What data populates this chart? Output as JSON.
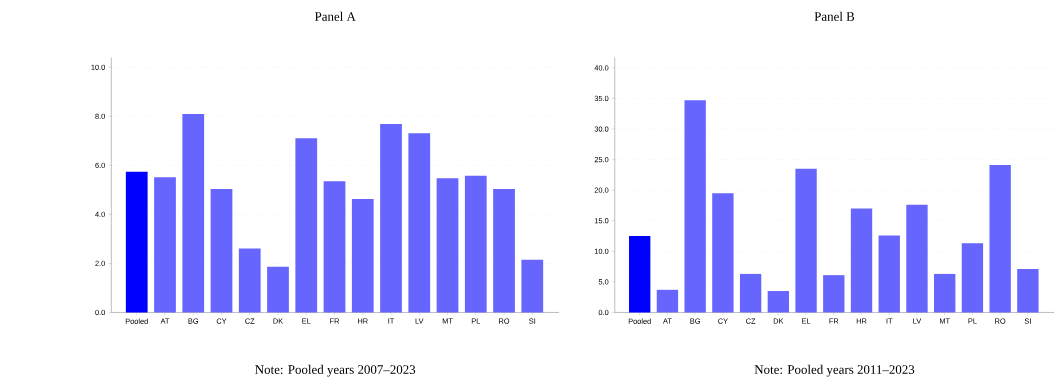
{
  "chart_data": [
    {
      "type": "bar",
      "title": "Panel A",
      "annotations": [
        "Note: Pooled years 2007–2023"
      ],
      "categories": [
        "Pooled",
        "AT",
        "BG",
        "CY",
        "CZ",
        "DK",
        "EL",
        "FR",
        "HR",
        "IT",
        "LV",
        "MT",
        "PL",
        "RO",
        "SI"
      ],
      "values": [
        5.74,
        5.51,
        8.09,
        5.04,
        2.61,
        1.86,
        7.11,
        5.35,
        4.63,
        7.69,
        7.31,
        5.47,
        5.58,
        5.04,
        2.15
      ],
      "colors": [
        "#0000ff",
        "#6666ff",
        "#6666ff",
        "#6666ff",
        "#6666ff",
        "#6666ff",
        "#6666ff",
        "#6666ff",
        "#6666ff",
        "#6666ff",
        "#6666ff",
        "#6666ff",
        "#6666ff",
        "#6666ff",
        "#6666ff"
      ],
      "ylim": [
        0,
        10.4
      ],
      "yticks": [
        {
          "value": 0,
          "label": "0.0"
        },
        {
          "value": 2,
          "label": "2.0"
        },
        {
          "value": 4,
          "label": "4.0"
        },
        {
          "value": 6,
          "label": "6.0"
        },
        {
          "value": 8,
          "label": "8.0"
        },
        {
          "value": 10,
          "label": "10.0"
        }
      ],
      "grid": "y"
    },
    {
      "type": "bar",
      "title": "Panel B",
      "annotations": [
        "Note: Pooled years 2011–2023"
      ],
      "categories": [
        "Pooled",
        "AT",
        "BG",
        "CY",
        "CZ",
        "DK",
        "EL",
        "FR",
        "HR",
        "IT",
        "LV",
        "MT",
        "PL",
        "RO",
        "SI"
      ],
      "values": [
        12.5,
        3.7,
        34.7,
        19.5,
        6.3,
        3.5,
        23.5,
        6.1,
        17.0,
        12.6,
        17.6,
        6.3,
        11.3,
        24.1,
        7.1
      ],
      "colors": [
        "#0000ff",
        "#6666ff",
        "#6666ff",
        "#6666ff",
        "#6666ff",
        "#6666ff",
        "#6666ff",
        "#6666ff",
        "#6666ff",
        "#6666ff",
        "#6666ff",
        "#6666ff",
        "#6666ff",
        "#6666ff",
        "#6666ff"
      ],
      "ylim": [
        0,
        41.7
      ],
      "yticks": [
        {
          "value": 0,
          "label": "0.0"
        },
        {
          "value": 5,
          "label": "5.0"
        },
        {
          "value": 10,
          "label": "10.0"
        },
        {
          "value": 15,
          "label": "15.0"
        },
        {
          "value": 20,
          "label": "20.0"
        },
        {
          "value": 25,
          "label": "25.0"
        },
        {
          "value": 30,
          "label": "30.0"
        },
        {
          "value": 35,
          "label": "35.0"
        },
        {
          "value": 40,
          "label": "40.0"
        }
      ],
      "grid": "y"
    }
  ]
}
